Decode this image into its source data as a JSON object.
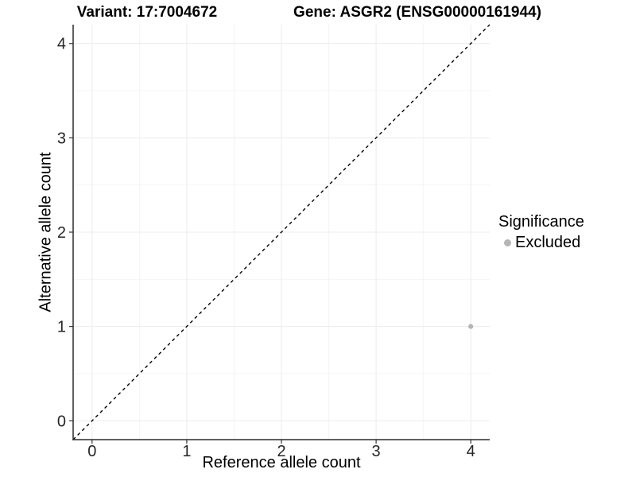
{
  "titles": {
    "variant": "Variant: 17:7004672",
    "gene": "Gene: ASGR2 (ENSG00000161944)"
  },
  "axes": {
    "x_label": "Reference allele count",
    "y_label": "Alternative allele count"
  },
  "legend": {
    "title": "Significance",
    "items": [
      {
        "label": "Excluded",
        "color": "#b5b5b5"
      }
    ]
  },
  "chart_data": {
    "type": "scatter",
    "title": "Variant: 17:7004672    Gene: ASGR2 (ENSG00000161944)",
    "xlabel": "Reference allele count",
    "ylabel": "Alternative allele count",
    "xlim": [
      -0.2,
      4.2
    ],
    "ylim": [
      -0.2,
      4.2
    ],
    "x_ticks": [
      0,
      1,
      2,
      3,
      4
    ],
    "y_ticks": [
      0,
      1,
      2,
      3,
      4
    ],
    "grid": true,
    "legend_position": "right",
    "legend_title": "Significance",
    "series": [
      {
        "name": "Excluded",
        "color": "#b5b5b5",
        "points": [
          {
            "x": 4,
            "y": 1
          }
        ]
      }
    ],
    "reference_line": {
      "type": "identity",
      "slope": 1,
      "intercept": 0,
      "linetype": "dashed",
      "color": "#000000"
    }
  },
  "colors": {
    "background": "#ffffff",
    "grid_major": "#ececec",
    "grid_minor": "#f4f4f4",
    "axis_line": "#2b2b2b",
    "tick_mark": "#333333",
    "tick_text": "#262626",
    "point_gray": "#b5b5b5"
  }
}
